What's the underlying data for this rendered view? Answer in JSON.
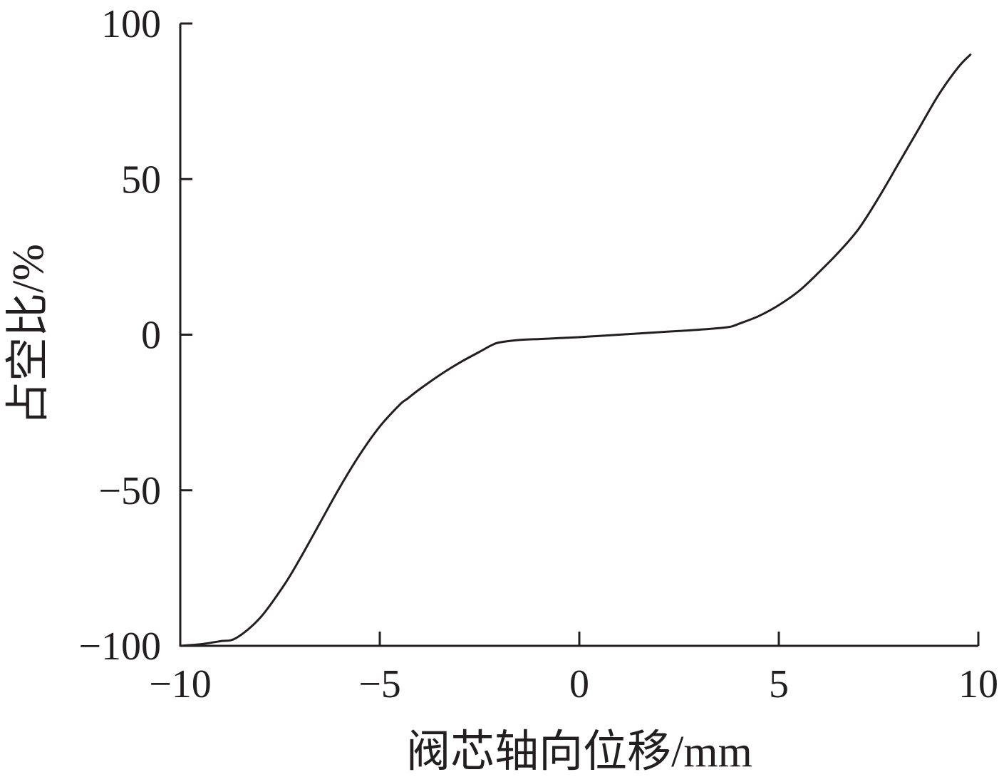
{
  "chart_data": {
    "type": "line",
    "title": "",
    "xlabel": "阀芯轴向位移/mm",
    "ylabel": "占空比/%",
    "xlim": [
      -10,
      10
    ],
    "ylim": [
      -100,
      100
    ],
    "xticks": [
      -10,
      -5,
      0,
      5,
      10
    ],
    "xtick_labels": [
      "−10",
      "−5",
      "0",
      "5",
      "10"
    ],
    "yticks": [
      -100,
      -50,
      0,
      50,
      100
    ],
    "ytick_labels": [
      "−100",
      "−50",
      "0",
      "50",
      "100"
    ],
    "grid": false,
    "legend": "none",
    "line_color": "#231f20",
    "series": [
      {
        "x": [
          -10,
          -9.5,
          -9,
          -8.6,
          -8,
          -7.4,
          -7,
          -6.5,
          -6,
          -5.5,
          -5,
          -4.5,
          -4.3,
          -4,
          -3.5,
          -3,
          -2.5,
          -2.2,
          -2,
          -1.5,
          -1,
          -0.5,
          0,
          0.5,
          1,
          1.5,
          2,
          2.5,
          3,
          3.5,
          3.8,
          4,
          4.5,
          5,
          5.5,
          6,
          6.5,
          7,
          7.5,
          8,
          8.5,
          9,
          9.5,
          9.8
        ],
        "y": [
          -100,
          -99.5,
          -98.5,
          -97.5,
          -91,
          -80.5,
          -72,
          -60.5,
          -49,
          -38.5,
          -29.5,
          -22.5,
          -20.5,
          -17.5,
          -13,
          -9,
          -5.5,
          -3.4,
          -2.5,
          -1.7,
          -1.4,
          -1.1,
          -0.8,
          -0.4,
          0,
          0.4,
          0.8,
          1.2,
          1.6,
          2.1,
          2.6,
          3.5,
          6,
          9.5,
          14,
          20,
          26.5,
          34,
          44,
          55,
          66,
          77,
          86,
          90
        ]
      }
    ]
  }
}
